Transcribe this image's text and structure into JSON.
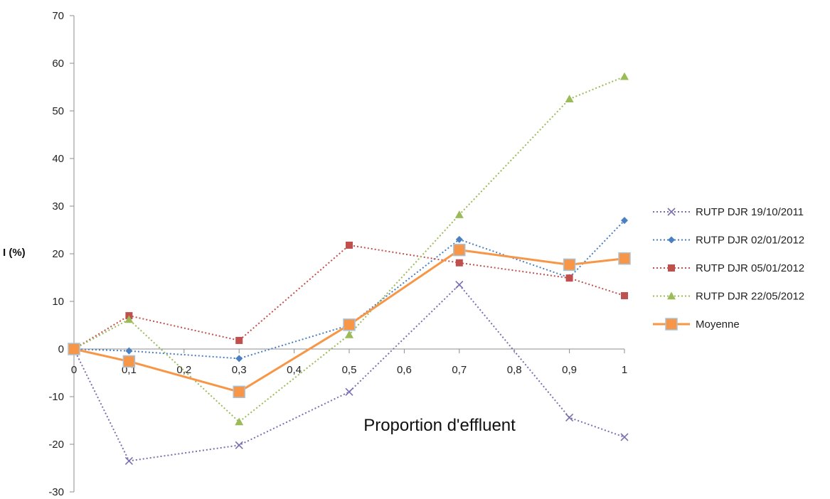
{
  "chart_data": {
    "type": "line",
    "title": "",
    "xlabel": "Proportion d'effluent",
    "ylabel": "I (%)",
    "x": [
      0,
      0.1,
      0.3,
      0.5,
      0.7,
      0.9,
      1
    ],
    "xlim": [
      0,
      1
    ],
    "ylim": [
      -30,
      70
    ],
    "x_ticks": [
      0,
      0.1,
      0.2,
      0.3,
      0.4,
      0.5,
      0.6,
      0.7,
      0.8,
      0.9,
      1
    ],
    "x_tick_labels": [
      "0",
      "0,1",
      "0,2",
      "0,3",
      "0,4",
      "0,5",
      "0,6",
      "0,7",
      "0,8",
      "0,9",
      "1"
    ],
    "y_ticks": [
      -30,
      -20,
      -10,
      0,
      10,
      20,
      30,
      40,
      50,
      60,
      70
    ],
    "y_tick_labels": [
      "-30",
      "-20",
      "-10",
      "0",
      "10",
      "20",
      "30",
      "40",
      "50",
      "60",
      "70"
    ],
    "grid": false,
    "legend_position": "right",
    "series": [
      {
        "name": "RUTP DJR 19/10/2011",
        "values": [
          0,
          -23.5,
          -20.2,
          -9,
          13.5,
          -14.4,
          -18.5
        ],
        "color": "#7a6fb0",
        "marker": "x",
        "line_style": "dotted"
      },
      {
        "name": "RUTP DJR 02/01/2012",
        "values": [
          0,
          -0.4,
          -2,
          5,
          23,
          15,
          27
        ],
        "color": "#4a7fc1",
        "marker": "diamond",
        "line_style": "dotted"
      },
      {
        "name": "RUTP DJR 05/01/2012",
        "values": [
          0,
          7,
          1.8,
          21.8,
          18.1,
          14.9,
          11.2
        ],
        "color": "#c0504d",
        "marker": "square",
        "line_style": "dotted"
      },
      {
        "name": "RUTP DJR 22/05/2012",
        "values": [
          0,
          6.2,
          -15.3,
          3,
          28.2,
          52.5,
          57.2
        ],
        "color": "#9bbb59",
        "marker": "triangle",
        "line_style": "dotted"
      },
      {
        "name": "Moyenne",
        "values": [
          0,
          -2.6,
          -9,
          5.1,
          20.8,
          17.7,
          19
        ],
        "color": "#f79646",
        "marker": "big-square",
        "line_style": "solid"
      }
    ]
  }
}
